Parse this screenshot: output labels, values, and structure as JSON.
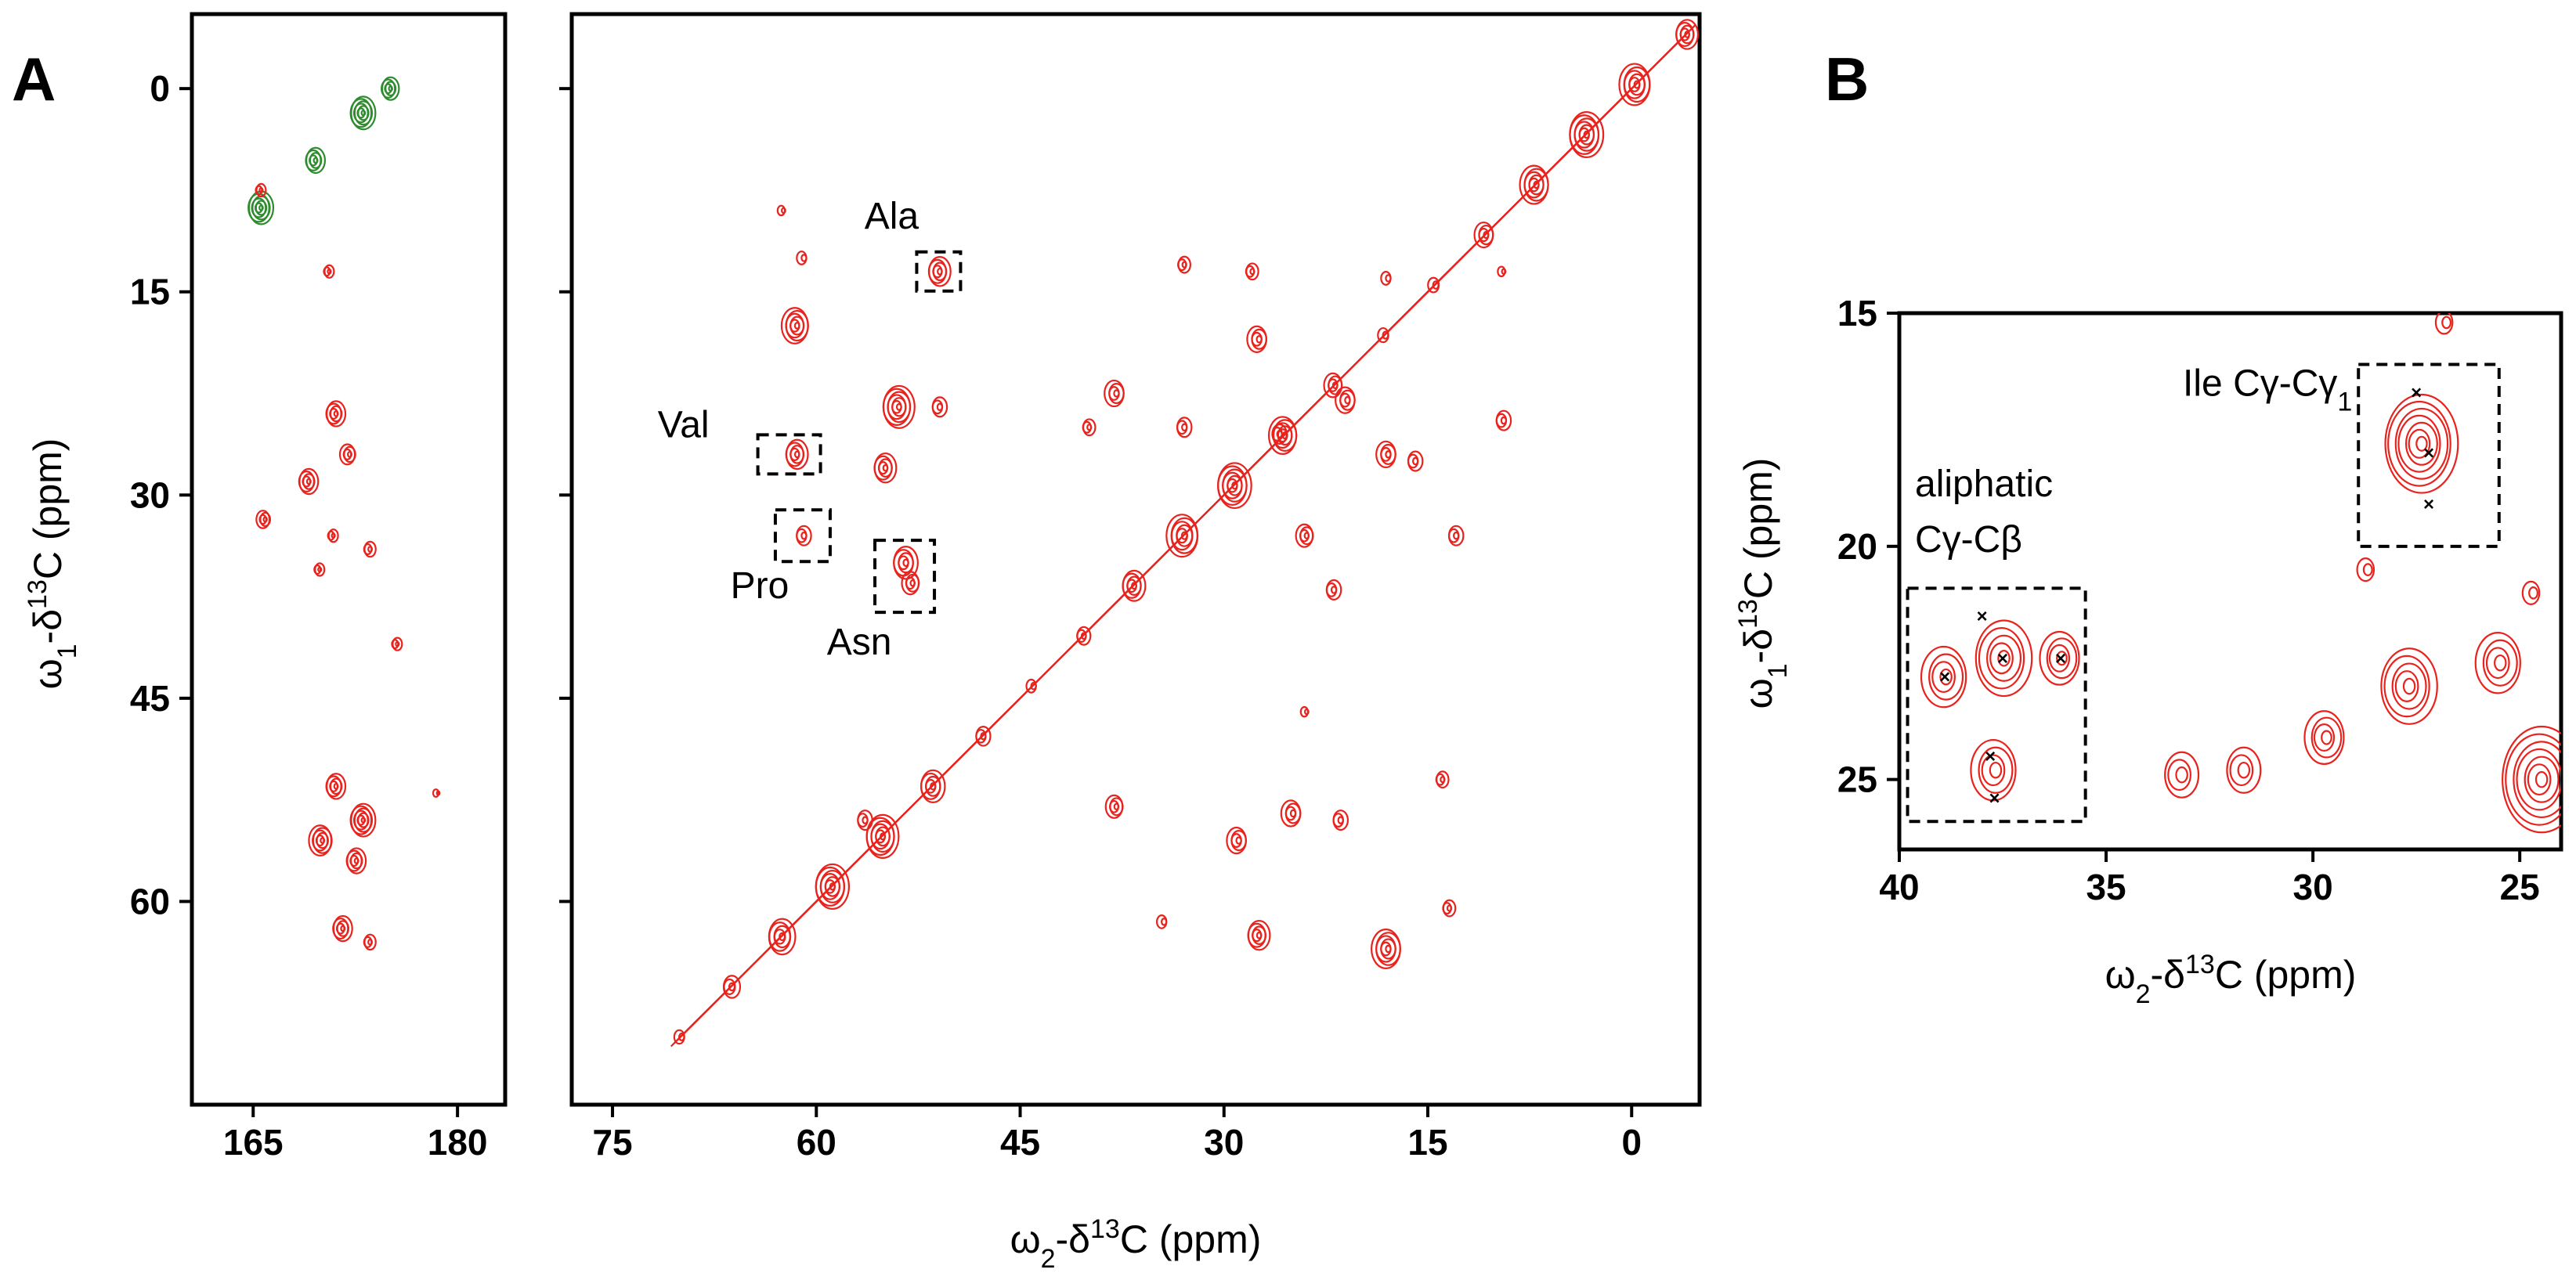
{
  "colors": {
    "crosspeak": "#e8231d",
    "folded": "#2e8b2e",
    "frame": "#000000"
  },
  "panel_labels": {
    "a": "A",
    "b": "B"
  },
  "axis_titles": {
    "a_y": {
      "omega": "ω",
      "sub": "1",
      "mid": "-δ",
      "sup": "13",
      "tail": "C (ppm)"
    },
    "a_x": {
      "omega": "ω",
      "sub": "2",
      "mid": "-δ",
      "sup": "13",
      "tail": "C (ppm)"
    },
    "b_y": {
      "omega": "ω",
      "sub": "1",
      "mid": "-δ",
      "sup": "13",
      "tail": "C (ppm)"
    },
    "b_x": {
      "omega": "ω",
      "sub": "2",
      "mid": "-δ",
      "sup": "13",
      "tail": "C (ppm)"
    }
  },
  "chart_data": [
    {
      "id": "A-carbonyl",
      "type": "scatter",
      "title": "",
      "xlabel": "ω2-δ13C (ppm)",
      "ylabel": "ω1-δ13C (ppm)",
      "xlim": [
        160.5,
        183.5
      ],
      "ylim": [
        -5.5,
        75
      ],
      "x_ticks": [
        165,
        180
      ],
      "y_ticks": [
        0,
        15,
        30,
        45,
        60
      ],
      "grid": false,
      "series": [
        {
          "name": "folded (green)",
          "color": "#2e8b2e",
          "points": [
            {
              "x": 165.5,
              "y": 8.8,
              "v": 1.3
            },
            {
              "x": 169.5,
              "y": 5.3,
              "v": 1.0
            },
            {
              "x": 173.0,
              "y": 1.8,
              "v": 1.3
            },
            {
              "x": 175.0,
              "y": 0.0,
              "v": 0.9
            }
          ]
        },
        {
          "name": "cross peaks (red)",
          "color": "#e8231d",
          "points": [
            {
              "x": 165.5,
              "y": 7.5,
              "v": 0.5
            },
            {
              "x": 170.5,
              "y": 13.5,
              "v": 0.5
            },
            {
              "x": 171.0,
              "y": 24.0,
              "v": 1.0
            },
            {
              "x": 172.0,
              "y": 27.0,
              "v": 0.8
            },
            {
              "x": 169.0,
              "y": 29.0,
              "v": 1.0
            },
            {
              "x": 165.8,
              "y": 31.8,
              "v": 0.7
            },
            {
              "x": 170.8,
              "y": 33.0,
              "v": 0.5
            },
            {
              "x": 173.5,
              "y": 34.0,
              "v": 0.6
            },
            {
              "x": 169.8,
              "y": 35.5,
              "v": 0.5
            },
            {
              "x": 175.5,
              "y": 41.0,
              "v": 0.5
            },
            {
              "x": 171.0,
              "y": 51.5,
              "v": 1.0
            },
            {
              "x": 173.0,
              "y": 54.0,
              "v": 1.3
            },
            {
              "x": 170.0,
              "y": 55.5,
              "v": 1.2
            },
            {
              "x": 172.5,
              "y": 57.0,
              "v": 1.0
            },
            {
              "x": 171.5,
              "y": 62.0,
              "v": 1.0
            },
            {
              "x": 173.5,
              "y": 63.0,
              "v": 0.6
            },
            {
              "x": 178.5,
              "y": 52.0,
              "v": 0.3
            }
          ]
        }
      ]
    },
    {
      "id": "A-aliphatic",
      "type": "scatter",
      "title": "",
      "xlabel": "ω2-δ13C (ppm)",
      "ylabel": "ω1-δ13C (ppm)",
      "xlim": [
        78,
        -5
      ],
      "ylim": [
        -5.5,
        75
      ],
      "x_ticks": [
        75,
        60,
        45,
        30,
        15,
        0
      ],
      "y_ticks": [
        0,
        15,
        30,
        45,
        60
      ],
      "grid": false,
      "diagonal": [
        [
          -4,
          -4
        ],
        [
          70,
          70
        ]
      ],
      "series": [
        {
          "name": "cross peaks (red)",
          "color": "#e8231d",
          "points": [
            {
              "x": 51.0,
              "y": 13.5,
              "v": 0.9
            },
            {
              "x": 61.5,
              "y": 17.5,
              "v": 1.1
            },
            {
              "x": 61.5,
              "y": 27.0,
              "v": 0.9
            },
            {
              "x": 61.0,
              "y": 33.0,
              "v": 0.6
            },
            {
              "x": 53.5,
              "y": 35.0,
              "v": 1.0
            },
            {
              "x": 53.0,
              "y": 36.5,
              "v": 0.7
            },
            {
              "x": 54.0,
              "y": 23.5,
              "v": 1.3
            },
            {
              "x": 55.0,
              "y": 28.0,
              "v": 0.9
            },
            {
              "x": 51.0,
              "y": 23.5,
              "v": 0.6
            },
            {
              "x": 61.0,
              "y": 12.5,
              "v": 0.4
            },
            {
              "x": 38.0,
              "y": 22.5,
              "v": 0.8
            },
            {
              "x": 33.0,
              "y": 25.0,
              "v": 0.6
            },
            {
              "x": 27.5,
              "y": 18.5,
              "v": 0.8
            },
            {
              "x": 21.0,
              "y": 23.0,
              "v": 0.8
            },
            {
              "x": 18.0,
              "y": 27.0,
              "v": 0.8
            },
            {
              "x": 16.0,
              "y": 27.5,
              "v": 0.6
            },
            {
              "x": 9.5,
              "y": 24.5,
              "v": 0.6
            },
            {
              "x": 13.0,
              "y": 33.0,
              "v": 0.6
            },
            {
              "x": 22.0,
              "y": 37.0,
              "v": 0.6
            },
            {
              "x": 24.0,
              "y": 33.0,
              "v": 0.7
            },
            {
              "x": 33.0,
              "y": 13.0,
              "v": 0.5
            },
            {
              "x": 28.0,
              "y": 13.5,
              "v": 0.5
            },
            {
              "x": 9.5,
              "y": 13.5,
              "v": 0.3
            },
            {
              "x": 18.0,
              "y": 14.0,
              "v": 0.4
            },
            {
              "x": 40.0,
              "y": 25.0,
              "v": 0.5
            },
            {
              "x": 26.0,
              "y": 25.5,
              "v": 0.6
            },
            {
              "x": 56.5,
              "y": 54.0,
              "v": 0.6
            },
            {
              "x": 38.0,
              "y": 53.0,
              "v": 0.7
            },
            {
              "x": 29.0,
              "y": 55.5,
              "v": 0.8
            },
            {
              "x": 25.0,
              "y": 53.5,
              "v": 0.8
            },
            {
              "x": 21.5,
              "y": 54.0,
              "v": 0.6
            },
            {
              "x": 14.0,
              "y": 51.0,
              "v": 0.5
            },
            {
              "x": 27.5,
              "y": 62.5,
              "v": 0.9
            },
            {
              "x": 18.0,
              "y": 63.5,
              "v": 1.2
            },
            {
              "x": 13.5,
              "y": 60.5,
              "v": 0.5
            },
            {
              "x": 34.5,
              "y": 61.5,
              "v": 0.4
            },
            {
              "x": 24.0,
              "y": 46.0,
              "v": 0.3
            },
            {
              "x": 62.5,
              "y": 9.0,
              "v": 0.3
            }
          ]
        }
      ],
      "annotations": [
        {
          "label": "Ala",
          "x": 51.0,
          "y": 13.5
        },
        {
          "label": "Val",
          "x": 62.0,
          "y": 27.0
        },
        {
          "label": "Pro",
          "x": 61.0,
          "y": 33.0
        },
        {
          "label": "Asn",
          "x": 53.5,
          "y": 36.0
        }
      ]
    },
    {
      "id": "B",
      "type": "scatter",
      "title": "",
      "xlabel": "ω2-δ13C (ppm)",
      "ylabel": "ω1-δ13C (ppm)",
      "xlim": [
        40,
        24
      ],
      "ylim": [
        15,
        26.5
      ],
      "x_ticks": [
        40,
        35,
        30,
        25
      ],
      "y_ticks": [
        15,
        20,
        25
      ],
      "grid": false,
      "series": [
        {
          "name": "cross peaks (red)",
          "color": "#e8231d",
          "points": [
            {
              "x": 38.9,
              "y": 22.8,
              "v": 0.8
            },
            {
              "x": 37.5,
              "y": 22.4,
              "v": 1.0
            },
            {
              "x": 36.1,
              "y": 22.4,
              "v": 0.7
            },
            {
              "x": 37.7,
              "y": 24.8,
              "v": 0.8
            },
            {
              "x": 27.4,
              "y": 17.8,
              "v": 1.3
            },
            {
              "x": 33.2,
              "y": 24.9,
              "v": 0.6
            },
            {
              "x": 31.7,
              "y": 24.8,
              "v": 0.6
            },
            {
              "x": 29.7,
              "y": 24.1,
              "v": 0.7
            },
            {
              "x": 27.7,
              "y": 23.0,
              "v": 1.0
            },
            {
              "x": 25.5,
              "y": 22.5,
              "v": 0.8
            },
            {
              "x": 24.5,
              "y": 25.0,
              "v": 1.4
            },
            {
              "x": 26.8,
              "y": 15.2,
              "v": 0.3
            },
            {
              "x": 28.7,
              "y": 20.5,
              "v": 0.3
            },
            {
              "x": 24.7,
              "y": 21.0,
              "v": 0.3
            }
          ]
        }
      ],
      "markers": [
        {
          "x": 38.9,
          "y": 22.8
        },
        {
          "x": 38.0,
          "y": 21.5
        },
        {
          "x": 37.5,
          "y": 22.4
        },
        {
          "x": 36.1,
          "y": 22.4
        },
        {
          "x": 37.8,
          "y": 24.5
        },
        {
          "x": 37.7,
          "y": 25.4
        },
        {
          "x": 27.5,
          "y": 16.7
        },
        {
          "x": 27.2,
          "y": 18.0
        },
        {
          "x": 27.2,
          "y": 19.1
        }
      ],
      "annotations": [
        {
          "label_line1": "Ile Cγ-Cγ",
          "label_sub": "1",
          "x": 27.3,
          "y": 18.0
        },
        {
          "label_line1": "aliphatic",
          "label_line2": "Cγ-Cβ",
          "x": 37.5,
          "y": 23.4
        }
      ]
    }
  ]
}
